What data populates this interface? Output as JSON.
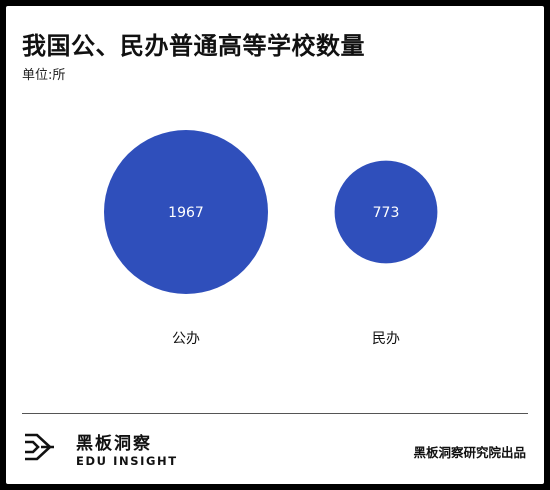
{
  "chart_data": {
    "type": "bubble",
    "title": "我国公、民办普通高等学校数量",
    "unit_label": "单位:所",
    "categories": [
      "公办",
      "民办"
    ],
    "values": [
      1967,
      773
    ],
    "color": "#2f4fbb"
  },
  "footer": {
    "brand_cn": "黑板洞察",
    "brand_en": "EDU INSIGHT",
    "credit": "黑板洞察研究院出品"
  }
}
